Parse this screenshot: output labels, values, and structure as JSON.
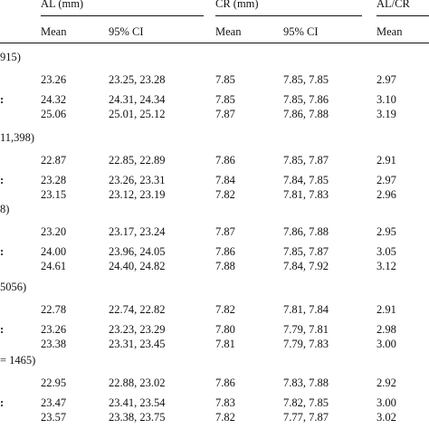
{
  "header": {
    "groups": [
      {
        "label": "AL (mm)",
        "cols": [
          "Mean",
          "95% CI"
        ]
      },
      {
        "label": "CR (mm)",
        "cols": [
          "Mean",
          "95% CI"
        ]
      },
      {
        "label": "AL/CR",
        "cols": [
          "Mean"
        ]
      }
    ]
  },
  "sections": [
    {
      "label": "915)",
      "rows": [
        {
          "mark": "",
          "al_mean": "23.26",
          "al_ci": "23.25, 23.28",
          "cr_mean": "7.85",
          "cr_ci": "7.85, 7.85",
          "ratio": "2.97"
        },
        {
          "mark": ":",
          "al_mean": "24.32",
          "al_ci": "24.31, 24.34",
          "cr_mean": "7.85",
          "cr_ci": "7.85, 7.86",
          "ratio": "3.10"
        },
        {
          "mark": "",
          "al_mean": "25.06",
          "al_ci": "25.01, 25.12",
          "cr_mean": "7.87",
          "cr_ci": "7.86, 7.88",
          "ratio": "3.19"
        }
      ]
    },
    {
      "label": "11,398)",
      "rows": [
        {
          "mark": "",
          "al_mean": "22.87",
          "al_ci": "22.85, 22.89",
          "cr_mean": "7.86",
          "cr_ci": "7.85, 7.87",
          "ratio": "2.91"
        },
        {
          "mark": ":",
          "al_mean": "23.28",
          "al_ci": "23.26, 23.31",
          "cr_mean": "7.84",
          "cr_ci": "7.84, 7.85",
          "ratio": "2.97"
        },
        {
          "mark": "",
          "al_mean": "23.15",
          "al_ci": "23.12, 23.19",
          "cr_mean": "7.82",
          "cr_ci": "7.81, 7.83",
          "ratio": "2.96"
        }
      ]
    },
    {
      "label": "8)",
      "rows": [
        {
          "mark": "",
          "al_mean": "23.20",
          "al_ci": "23.17, 23.24",
          "cr_mean": "7.87",
          "cr_ci": "7.86, 7.88",
          "ratio": "2.95"
        },
        {
          "mark": ":",
          "al_mean": "24.00",
          "al_ci": "23.96, 24.05",
          "cr_mean": "7.86",
          "cr_ci": "7.85, 7.87",
          "ratio": "3.05"
        },
        {
          "mark": "",
          "al_mean": "24.61",
          "al_ci": "24.40, 24.82",
          "cr_mean": "7.88",
          "cr_ci": "7.84, 7.92",
          "ratio": "3.12"
        }
      ]
    },
    {
      "label": "5056)",
      "rows": [
        {
          "mark": "",
          "al_mean": "22.78",
          "al_ci": "22.74, 22.82",
          "cr_mean": "7.82",
          "cr_ci": "7.81, 7.84",
          "ratio": "2.91"
        },
        {
          "mark": ":",
          "al_mean": "23.26",
          "al_ci": "23.23, 23.29",
          "cr_mean": "7.80",
          "cr_ci": "7.79, 7.81",
          "ratio": "2.98"
        },
        {
          "mark": "",
          "al_mean": "23.38",
          "al_ci": "23.31, 23.45",
          "cr_mean": "7.81",
          "cr_ci": "7.79, 7.83",
          "ratio": "3.00"
        }
      ]
    },
    {
      "label": "= 1465)",
      "rows": [
        {
          "mark": "",
          "al_mean": "22.95",
          "al_ci": "22.88, 23.02",
          "cr_mean": "7.86",
          "cr_ci": "7.83, 7.88",
          "ratio": "2.92"
        },
        {
          "mark": ":",
          "al_mean": "23.47",
          "al_ci": "23.41, 23.54",
          "cr_mean": "7.83",
          "cr_ci": "7.82, 7.85",
          "ratio": "3.00"
        },
        {
          "mark": "",
          "al_mean": "23.57",
          "al_ci": "23.38, 23.75",
          "cr_mean": "7.82",
          "cr_ci": "7.77, 7.87",
          "ratio": "3.02"
        }
      ]
    }
  ]
}
